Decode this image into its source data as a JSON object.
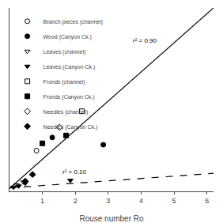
{
  "chart_data": {
    "type": "scatter",
    "xlabel": "Rouse number Ro",
    "xlim": [
      0,
      6.2
    ],
    "xticks": [
      1,
      2,
      3,
      4,
      5,
      6
    ],
    "ylim": [
      -0.1,
      6.2
    ],
    "tick_labels": "x",
    "grid": false,
    "legend": "upper left",
    "series": [
      {
        "type": "line",
        "line_style": "solid",
        "color": "black",
        "x": [
          0,
          6.2
        ],
        "values": [
          0,
          6.2
        ]
      },
      {
        "type": "line",
        "line_style": "dashed",
        "color": "black",
        "x": [
          0,
          6.2
        ],
        "values": [
          0.02,
          0.52
        ]
      },
      {
        "name": "Branch pieces (channel)",
        "marker": "circle-open",
        "color": "black",
        "x": [
          0.82
        ],
        "values": [
          1.3
        ]
      },
      {
        "name": "Wood (Canyon Ck.)",
        "marker": "circle",
        "color": "black",
        "x": [
          1.3,
          2.85
        ],
        "values": [
          1.75,
          1.5
        ]
      },
      {
        "name": "Leaves (channel)",
        "marker": "triangle-down-open",
        "color": "black",
        "x": [
          0.22,
          0.42
        ],
        "values": [
          0.12,
          0.22
        ]
      },
      {
        "name": "Leaves (Canyon Ck.)",
        "marker": "triangle-down",
        "color": "black",
        "x": [
          0.12,
          0.28,
          0.48,
          1.85
        ],
        "values": [
          0.04,
          0.08,
          0.18,
          0.28
        ]
      },
      {
        "name": "Fronds (channel)",
        "marker": "square-open",
        "color": "black",
        "x": [
          2.2
        ],
        "values": [
          2.65
        ]
      },
      {
        "name": "Fronds (Canyon Ck.)",
        "marker": "square",
        "color": "black",
        "x": [
          1.0,
          1.72
        ],
        "values": [
          1.55,
          1.82
        ]
      },
      {
        "name": "Needles (channel)",
        "marker": "diamond-open",
        "color": "black",
        "x": [
          1.52
        ],
        "values": [
          2.1
        ]
      },
      {
        "name": "Needles (Canyon Ck.)",
        "marker": "diamond",
        "color": "black",
        "x": [
          0.48,
          0.7
        ],
        "values": [
          0.25,
          0.48
        ]
      }
    ],
    "annotations": [
      {
        "text": "r² = 0.90",
        "x": 3.7,
        "y": 4.9
      },
      {
        "text": "r² = 0.10",
        "x": 1.55,
        "y": 0.38
      }
    ]
  }
}
